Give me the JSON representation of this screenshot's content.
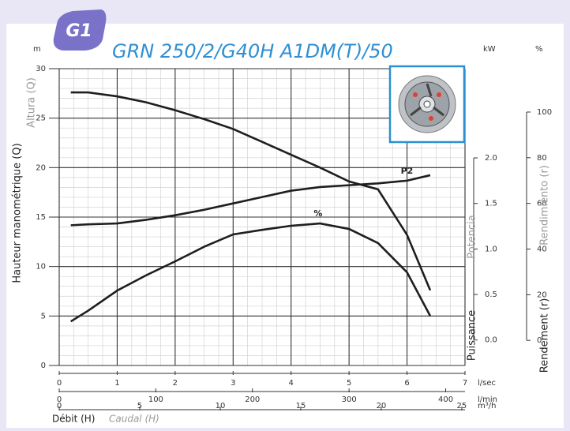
{
  "chart_data": {
    "type": "line",
    "badge": "G1",
    "title": "GRN 250/2/G40H A1DM(T)/50",
    "x": [
      0.2,
      0.5,
      1,
      1.5,
      2,
      2.5,
      3,
      3.5,
      4,
      4.5,
      5,
      5.5,
      6,
      6.4
    ],
    "xlim": [
      0,
      7
    ],
    "xticks": [
      0,
      1,
      2,
      3,
      4,
      5,
      6,
      7
    ],
    "x_unit": "l/sec",
    "x2": {
      "unit": "l/min",
      "xlim": [
        0,
        420
      ],
      "xticks": [
        0,
        100,
        200,
        300,
        400
      ]
    },
    "x3": {
      "unit": "m³/h",
      "xlim": [
        0,
        25.2
      ],
      "xticks": [
        0,
        5,
        10,
        15,
        20,
        25
      ]
    },
    "x_labels": [
      "Débit (H)",
      "Caudal (H)"
    ],
    "ylim": [
      0,
      30
    ],
    "yticks": [
      0,
      5,
      10,
      15,
      20,
      25,
      30
    ],
    "y_unit": "m",
    "y_labels": [
      "Hauteur manométrique (Q)",
      "Altura (Q)"
    ],
    "y2lim": [
      -0.28,
      2.98
    ],
    "y2ticks": [
      {
        "value": 0,
        "label": "0.0"
      },
      0.5,
      {
        "value": 1,
        "label": "1.0"
      },
      1.5,
      {
        "value": 2,
        "label": "2.0"
      }
    ],
    "y2_unit": "kW",
    "y2_labels": [
      "Puissance",
      "Potencia"
    ],
    "y3lim": [
      -11,
      119
    ],
    "y3ticks": [
      0,
      20,
      40,
      60,
      80,
      100
    ],
    "y3_unit": "%",
    "y3_labels": [
      "Rendement (r)",
      "Rendimiento (r)"
    ],
    "grid": true,
    "series": [
      {
        "color": "#1e1e1e",
        "values": [
          27.6,
          27.6,
          27.2,
          26.6,
          25.8,
          24.9,
          23.9,
          22.6,
          21.3,
          20.0,
          18.6,
          17.8,
          13.2,
          7.6
        ]
      },
      {
        "name": "P2",
        "axis": "y2",
        "color": "#1e1e1e",
        "values": [
          1.26,
          1.27,
          1.28,
          1.32,
          1.37,
          1.43,
          1.5,
          1.57,
          1.64,
          1.68,
          1.7,
          1.72,
          1.75,
          1.81
        ]
      },
      {
        "name": "%",
        "axis": "y3",
        "color": "#1e1e1e",
        "values": [
          8.3,
          13,
          21.8,
          28.5,
          34.6,
          41,
          46.4,
          48.4,
          50.2,
          51.2,
          48.8,
          42.6,
          29.8,
          10.7
        ]
      }
    ]
  }
}
